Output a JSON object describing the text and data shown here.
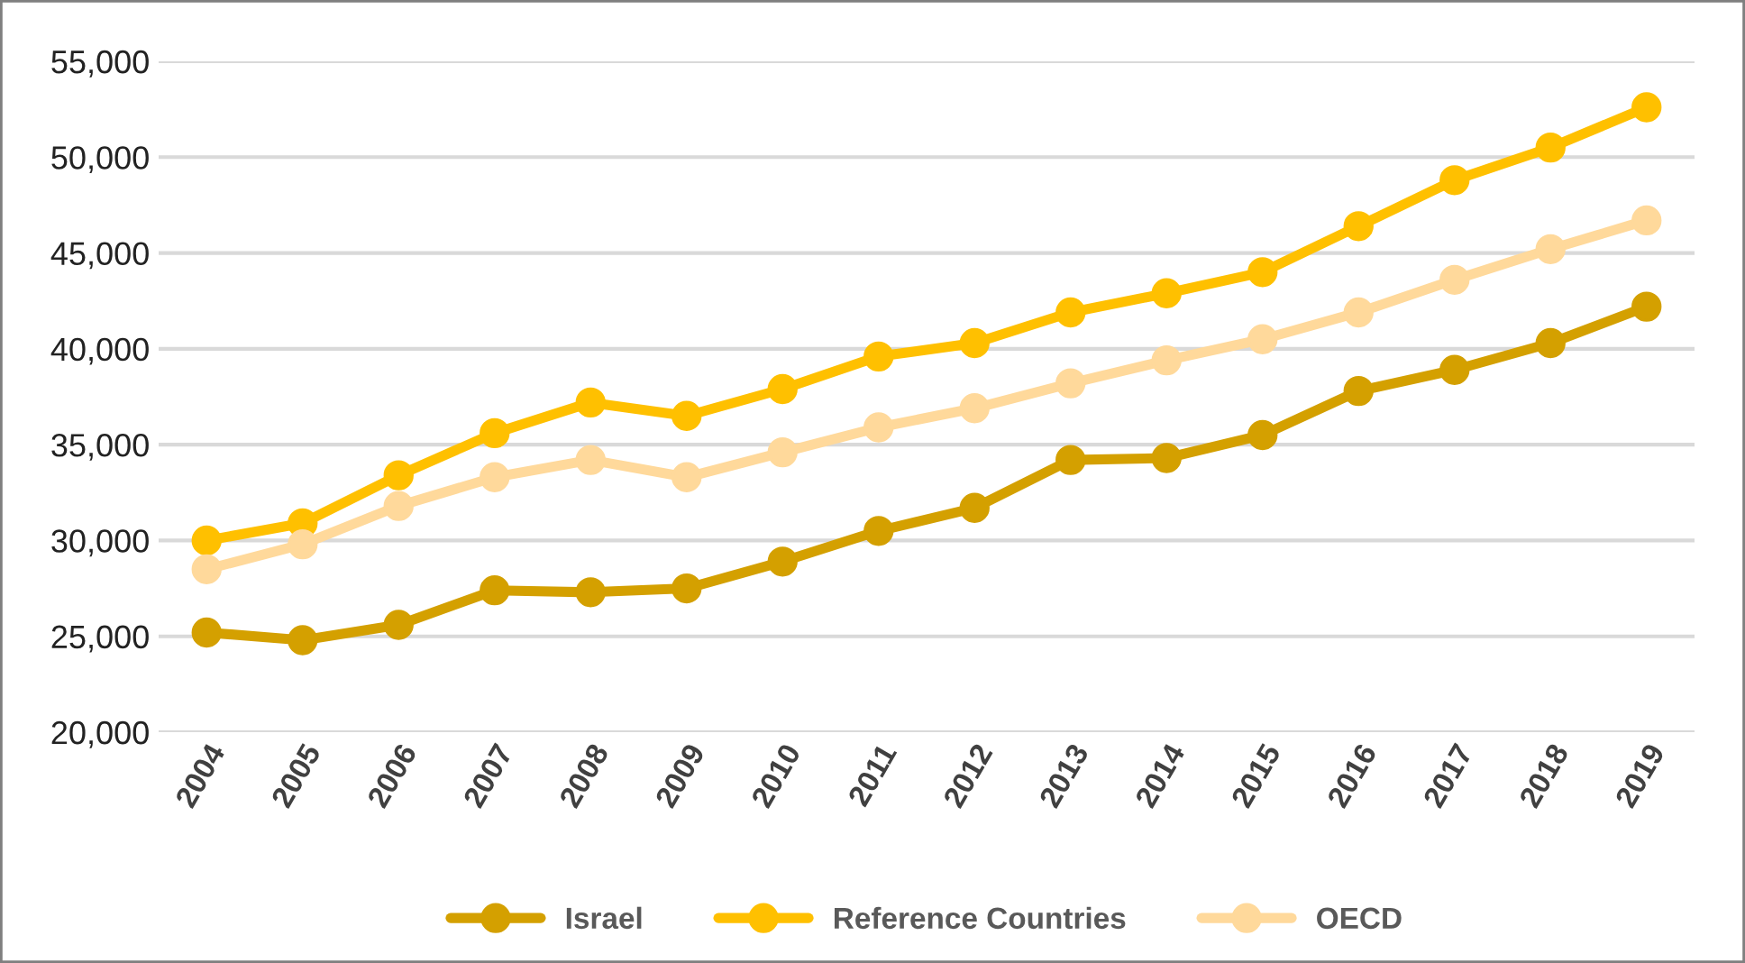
{
  "chart_data": {
    "type": "line",
    "categories": [
      "2004",
      "2005",
      "2006",
      "2007",
      "2008",
      "2009",
      "2010",
      "2011",
      "2012",
      "2013",
      "2014",
      "2015",
      "2016",
      "2017",
      "2018",
      "2019"
    ],
    "series": [
      {
        "name": "Israel",
        "color": "#d4a000",
        "values": [
          25200,
          24800,
          25600,
          27400,
          27300,
          27500,
          28900,
          30500,
          31700,
          34200,
          34300,
          35500,
          37800,
          38900,
          40300,
          42200
        ]
      },
      {
        "name": "Reference Countries",
        "color": "#ffc000",
        "values": [
          30000,
          30900,
          33400,
          35600,
          37200,
          36500,
          37900,
          39600,
          40300,
          41900,
          42900,
          44000,
          46400,
          48800,
          50500,
          52600
        ]
      },
      {
        "name": "OECD",
        "color": "#ffd99b",
        "values": [
          28500,
          29800,
          31800,
          33300,
          34200,
          33300,
          34600,
          35900,
          36900,
          38200,
          39400,
          40500,
          41900,
          43600,
          45200,
          46700
        ]
      }
    ],
    "ylim": [
      20000,
      55000
    ],
    "yticks": [
      {
        "value": 20000,
        "label": "20,000"
      },
      {
        "value": 25000,
        "label": "25,000"
      },
      {
        "value": 30000,
        "label": "30,000"
      },
      {
        "value": 35000,
        "label": "35,000"
      },
      {
        "value": 40000,
        "label": "40,000"
      },
      {
        "value": 45000,
        "label": "45,000"
      },
      {
        "value": 50000,
        "label": "50,000"
      },
      {
        "value": 55000,
        "label": "55,000"
      }
    ],
    "grid": "y",
    "legend": "bottom",
    "marker": "circle",
    "line_style": "solid"
  }
}
